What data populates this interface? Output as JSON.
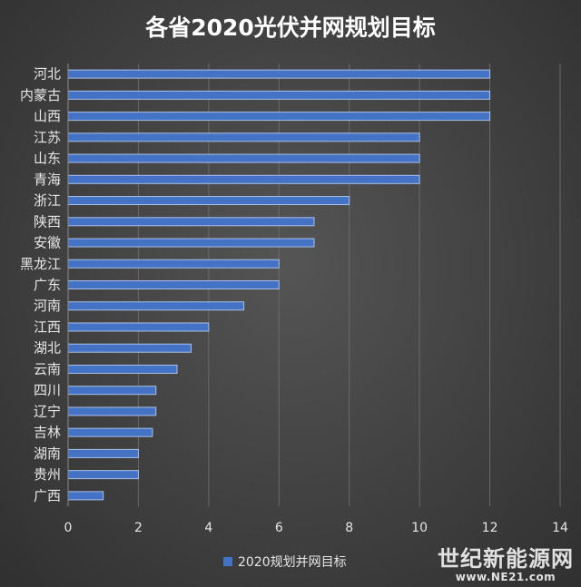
{
  "chart_data": {
    "type": "bar",
    "orientation": "horizontal",
    "title": "各省2020光伏并网规划目标",
    "categories": [
      "河北",
      "内蒙古",
      "山西",
      "江苏",
      "山东",
      "青海",
      "浙江",
      "陕西",
      "安徽",
      "黑龙江",
      "广东",
      "河南",
      "江西",
      "湖北",
      "云南",
      "四川",
      "辽宁",
      "吉林",
      "湖南",
      "贵州",
      "广西"
    ],
    "series": [
      {
        "name": "2020规划并网目标",
        "values": [
          12,
          12,
          12,
          10,
          10,
          10,
          8,
          7,
          7,
          6,
          6,
          5,
          4,
          3.5,
          3.1,
          2.5,
          2.5,
          2.4,
          2,
          2,
          1
        ]
      }
    ],
    "xlim": [
      0,
      14
    ],
    "xticks": [
      0,
      2,
      4,
      6,
      8,
      10,
      12,
      14
    ],
    "grid": true,
    "legend_position": "bottom",
    "colors": {
      "bar": "#4472c4",
      "bar_edge": "#a9c0ea",
      "grid": "#6a6a6a",
      "text": "#e6e6e6"
    }
  },
  "watermark": {
    "text": "世纪新能源网",
    "url": "www.NE21.com"
  }
}
